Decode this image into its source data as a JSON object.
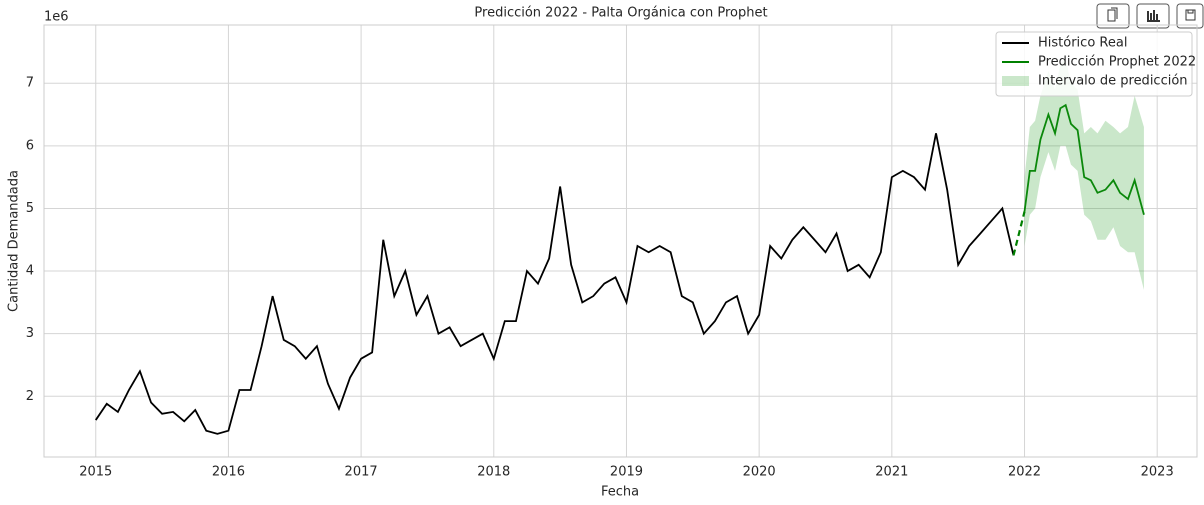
{
  "chart_data": {
    "type": "line",
    "title": "Predicción 2022 - Palta Orgánica con Prophet",
    "x_label": "Fecha",
    "y_label": "Cantidad Demandada",
    "y_offset_label": "1e6",
    "xlim": [
      2014.61,
      2023.3
    ],
    "xticks": [
      2015,
      2016,
      2017,
      2018,
      2019,
      2020,
      2021,
      2022,
      2023
    ],
    "ylim": [
      1.03,
      7.93
    ],
    "yticks": [
      2,
      3,
      4,
      5,
      6,
      7
    ],
    "grid": true,
    "legend": "upper right",
    "series": [
      {
        "name": "Histórico Real",
        "color": "#000000",
        "x": [
          2015,
          2015.083,
          2015.167,
          2015.25,
          2015.333,
          2015.417,
          2015.5,
          2015.583,
          2015.667,
          2015.75,
          2015.833,
          2015.917,
          2016,
          2016.083,
          2016.167,
          2016.25,
          2016.333,
          2016.417,
          2016.5,
          2016.583,
          2016.667,
          2016.75,
          2016.833,
          2016.917,
          2017,
          2017.083,
          2017.167,
          2017.25,
          2017.333,
          2017.417,
          2017.5,
          2017.583,
          2017.667,
          2017.75,
          2017.833,
          2017.917,
          2018,
          2018.083,
          2018.167,
          2018.25,
          2018.333,
          2018.417,
          2018.5,
          2018.583,
          2018.667,
          2018.75,
          2018.833,
          2018.917,
          2019,
          2019.083,
          2019.167,
          2019.25,
          2019.333,
          2019.417,
          2019.5,
          2019.583,
          2019.667,
          2019.75,
          2019.833,
          2019.917,
          2020,
          2020.083,
          2020.167,
          2020.25,
          2020.333,
          2020.417,
          2020.5,
          2020.583,
          2020.667,
          2020.75,
          2020.833,
          2020.917,
          2021,
          2021.083,
          2021.167,
          2021.25,
          2021.333,
          2021.417,
          2021.5,
          2021.583,
          2021.667,
          2021.75,
          2021.833,
          2021.917
        ],
        "values": [
          1.62,
          1.88,
          1.75,
          2.1,
          2.4,
          1.9,
          1.72,
          1.75,
          1.6,
          1.78,
          1.45,
          1.4,
          1.45,
          2.1,
          2.1,
          2.8,
          3.6,
          2.9,
          2.8,
          2.6,
          2.8,
          2.2,
          1.8,
          2.3,
          2.6,
          2.7,
          4.5,
          3.6,
          4.0,
          3.3,
          3.6,
          3.0,
          3.1,
          2.8,
          2.9,
          3.0,
          2.6,
          3.2,
          3.2,
          4.0,
          3.8,
          4.2,
          5.35,
          4.1,
          3.5,
          3.6,
          3.8,
          3.9,
          3.5,
          4.4,
          4.3,
          4.4,
          4.3,
          3.6,
          3.5,
          3.0,
          3.2,
          3.5,
          3.6,
          3.0,
          3.3,
          4.4,
          4.2,
          4.5,
          4.7,
          4.5,
          4.3,
          4.6,
          4.0,
          4.1,
          3.9,
          4.3,
          5.5,
          5.6,
          5.5,
          5.3,
          6.2,
          5.3,
          4.1,
          4.4,
          4.6,
          4.8,
          5.0,
          4.25
        ]
      },
      {
        "name": "Predicción Prophet 2022",
        "color": "#008000",
        "x": [
          2022,
          2022.04,
          2022.08,
          2022.12,
          2022.18,
          2022.23,
          2022.27,
          2022.31,
          2022.35,
          2022.4,
          2022.45,
          2022.5,
          2022.55,
          2022.61,
          2022.67,
          2022.72,
          2022.78,
          2022.83,
          2022.9
        ],
        "values": [
          4.95,
          5.6,
          5.6,
          6.1,
          6.5,
          6.2,
          6.6,
          6.65,
          6.35,
          6.25,
          5.5,
          5.45,
          5.25,
          5.3,
          5.45,
          5.25,
          5.15,
          5.45,
          4.9
        ]
      },
      {
        "name": "Intervalo de predicción",
        "color": "#2ca02c",
        "x": [
          2022,
          2022.04,
          2022.08,
          2022.12,
          2022.18,
          2022.23,
          2022.27,
          2022.31,
          2022.35,
          2022.4,
          2022.45,
          2022.5,
          2022.55,
          2022.61,
          2022.67,
          2022.72,
          2022.78,
          2022.83,
          2022.9
        ],
        "lower": [
          4.4,
          4.9,
          5.0,
          5.5,
          5.9,
          5.6,
          6.0,
          6.0,
          5.7,
          5.6,
          4.9,
          4.8,
          4.5,
          4.5,
          4.7,
          4.4,
          4.3,
          4.3,
          3.7
        ],
        "upper": [
          5.5,
          6.3,
          6.4,
          6.8,
          7.2,
          6.9,
          7.3,
          7.4,
          7.0,
          6.9,
          6.2,
          6.3,
          6.2,
          6.4,
          6.3,
          6.2,
          6.3,
          6.8,
          6.3
        ]
      }
    ]
  }
}
